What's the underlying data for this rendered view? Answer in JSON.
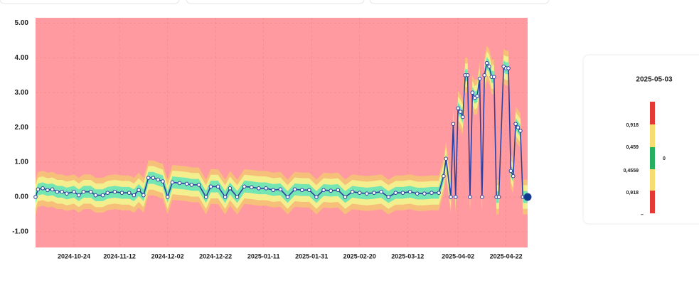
{
  "chart_data": {
    "type": "line",
    "x": [
      "2024-10-08",
      "2024-10-09",
      "2024-10-11",
      "2024-10-13",
      "2024-10-15",
      "2024-10-17",
      "2024-10-19",
      "2024-10-21",
      "2024-10-24",
      "2024-10-26",
      "2024-10-28",
      "2024-10-31",
      "2024-11-02",
      "2024-11-05",
      "2024-11-07",
      "2024-11-10",
      "2024-11-13",
      "2024-11-16",
      "2024-11-18",
      "2024-11-20",
      "2024-11-22",
      "2024-11-24",
      "2024-11-26",
      "2024-11-28",
      "2024-11-30",
      "2024-12-02",
      "2024-12-04",
      "2024-12-07",
      "2024-12-10",
      "2024-12-12",
      "2024-12-15",
      "2024-12-18",
      "2024-12-20",
      "2024-12-23",
      "2024-12-26",
      "2024-12-28",
      "2024-12-31",
      "2025-01-03",
      "2025-01-06",
      "2025-01-09",
      "2025-01-12",
      "2025-01-15",
      "2025-01-18",
      "2025-01-21",
      "2025-01-24",
      "2025-01-27",
      "2025-01-30",
      "2025-02-02",
      "2025-02-05",
      "2025-02-08",
      "2025-02-11",
      "2025-02-14",
      "2025-02-17",
      "2025-02-20",
      "2025-02-23",
      "2025-02-26",
      "2025-03-01",
      "2025-03-04",
      "2025-03-07",
      "2025-03-10",
      "2025-03-13",
      "2025-03-16",
      "2025-03-19",
      "2025-03-22",
      "2025-03-25",
      "2025-03-27",
      "2025-03-28",
      "2025-03-30",
      "2025-03-31",
      "2025-04-01",
      "2025-04-02",
      "2025-04-03",
      "2025-04-04",
      "2025-04-05",
      "2025-04-06",
      "2025-04-07",
      "2025-04-08",
      "2025-04-09",
      "2025-04-10",
      "2025-04-11",
      "2025-04-12",
      "2025-04-13",
      "2025-04-14",
      "2025-04-15",
      "2025-04-16",
      "2025-04-17",
      "2025-04-18",
      "2025-04-19",
      "2025-04-21",
      "2025-04-22",
      "2025-04-23",
      "2025-04-24",
      "2025-04-25",
      "2025-04-26",
      "2025-04-27",
      "2025-04-28",
      "2025-04-29",
      "2025-04-30",
      "2025-05-01"
    ],
    "series": [
      {
        "color": "#2f3f9e",
        "values": [
          0,
          0.22,
          0.25,
          0.2,
          0.22,
          0.15,
          0.15,
          0.1,
          0.15,
          0.05,
          0.15,
          0.15,
          0.05,
          0.05,
          0.12,
          0.15,
          0.12,
          0.12,
          0.05,
          0.2,
          0.05,
          0.55,
          0.55,
          0.5,
          0.45,
          0,
          0.42,
          0.4,
          0.38,
          0.35,
          0.35,
          0,
          0.3,
          0.3,
          0,
          0.25,
          0,
          0.3,
          0.28,
          0.25,
          0.25,
          0.2,
          0.22,
          0,
          0.22,
          0.2,
          0.2,
          0,
          0.2,
          0.18,
          0.2,
          0,
          0.15,
          0.12,
          0.1,
          0.12,
          0.15,
          0,
          0.12,
          0.12,
          0.15,
          0.1,
          0.1,
          0.12,
          0.12,
          0.6,
          1.1,
          0,
          2.1,
          0,
          2.55,
          2.45,
          2.3,
          3.5,
          3.5,
          0,
          3.0,
          2.85,
          2.9,
          3.4,
          0,
          3.5,
          3.85,
          3.75,
          3.45,
          3.45,
          0,
          0,
          3.75,
          3.7,
          3.7,
          0.75,
          0.6,
          2.1,
          2.0,
          1.9,
          0,
          0,
          0
        ]
      }
    ],
    "bands": [
      {
        "color": "#f7c07a",
        "width": 0.5
      },
      {
        "color": "#f4ef8e",
        "width": 0.34
      },
      {
        "color": "#74e6b4",
        "width": 0.17
      }
    ],
    "xlim": [
      "2024-10-08",
      "2025-05-01"
    ],
    "xticks": [
      "2024-10-24",
      "2024-11-12",
      "2024-12-02",
      "2024-12-22",
      "2025-01-11",
      "2025-01-31",
      "2025-02-20",
      "2025-03-12",
      "2025-04-02",
      "2025-04-22"
    ],
    "ylim": [
      -1.45,
      5.15
    ],
    "yticks": [
      {
        "value": -1,
        "label": "-1.00"
      },
      {
        "value": 0,
        "label": "0.00"
      },
      {
        "value": 1,
        "label": "1.00"
      },
      {
        "value": 2,
        "label": "2.00"
      },
      {
        "value": 3,
        "label": "3.00"
      },
      {
        "value": 4,
        "label": "4.00"
      },
      {
        "value": 5,
        "label": "5.00"
      }
    ],
    "background": "#fe9aa0",
    "grid": true
  },
  "legend_card": {
    "date": "2025-05-03",
    "labels": [
      "0,918",
      "0,459",
      "0,4559",
      "0,918"
    ],
    "center": "0",
    "footer": "–"
  }
}
